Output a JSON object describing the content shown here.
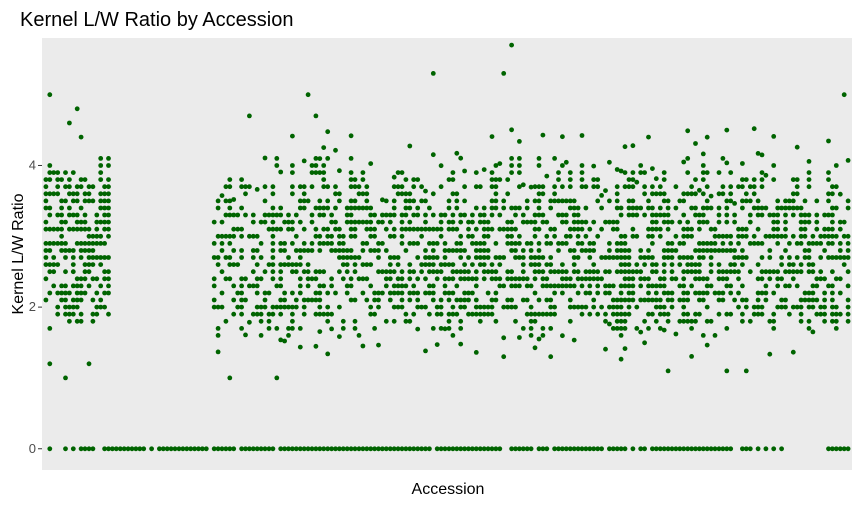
{
  "chart_data": {
    "type": "scatter",
    "title": "Kernel L/W Ratio by Accession",
    "xlabel": "Accession",
    "ylabel": "Kernel L/W Ratio",
    "ylim": [
      -0.3,
      5.8
    ],
    "yticks": [
      0,
      2,
      4
    ],
    "x_tick_labels_shown": false,
    "grid": false,
    "panel_background": "#EBEBEB",
    "point_color": "#006400",
    "series": [
      {
        "x_range": [
          1,
          200
        ],
        "y_min": 1.7,
        "y_max": 4.2,
        "y_mode": 2.9,
        "density": 0.8,
        "zero_fraction": 0.5,
        "outliers": [
          {
            "x": 2,
            "y": 5.0
          },
          {
            "x": 7,
            "y": 4.6
          },
          {
            "x": 9,
            "y": 4.8
          },
          {
            "x": 10,
            "y": 4.4
          },
          {
            "x": 2,
            "y": 1.2
          },
          {
            "x": 6,
            "y": 1.0
          },
          {
            "x": 12,
            "y": 1.2
          }
        ],
        "gap_after": [
          17,
          43
        ]
      },
      {
        "x_range": [
          44,
          205
        ],
        "y_min": 1.5,
        "y_max": 4.5,
        "y_mode": 2.6,
        "density": 1.0,
        "zero_fraction": 0.95,
        "outliers": [
          {
            "x": 68,
            "y": 5.0
          },
          {
            "x": 70,
            "y": 4.7
          },
          {
            "x": 53,
            "y": 4.7
          },
          {
            "x": 60,
            "y": 1.0
          },
          {
            "x": 48,
            "y": 1.0
          },
          {
            "x": 100,
            "y": 5.3
          },
          {
            "x": 118,
            "y": 5.3
          },
          {
            "x": 120,
            "y": 5.7
          },
          {
            "x": 118,
            "y": 1.3
          },
          {
            "x": 130,
            "y": 1.3
          },
          {
            "x": 155,
            "y": 4.4
          },
          {
            "x": 160,
            "y": 1.1
          },
          {
            "x": 175,
            "y": 4.5
          },
          {
            "x": 175,
            "y": 1.1
          },
          {
            "x": 180,
            "y": 1.1
          },
          {
            "x": 205,
            "y": 5.0
          }
        ]
      }
    ]
  }
}
